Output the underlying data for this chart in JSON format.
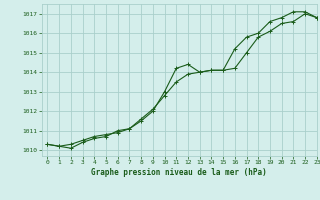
{
  "title": "Graphe pression niveau de la mer (hPa)",
  "background_color": "#d4eeeb",
  "grid_color": "#aacfcb",
  "line_color": "#1a5c1a",
  "xlim": [
    -0.5,
    23
  ],
  "ylim": [
    1009.7,
    1017.5
  ],
  "yticks": [
    1010,
    1011,
    1012,
    1013,
    1014,
    1015,
    1016,
    1017
  ],
  "xticks": [
    0,
    1,
    2,
    3,
    4,
    5,
    6,
    7,
    8,
    9,
    10,
    11,
    12,
    13,
    14,
    15,
    16,
    17,
    18,
    19,
    20,
    21,
    22,
    23
  ],
  "line1_x": [
    0,
    1,
    2,
    3,
    4,
    5,
    6,
    7,
    8,
    9,
    10,
    11,
    12,
    13,
    14,
    15,
    16,
    17,
    18,
    19,
    20,
    21,
    22,
    23
  ],
  "line1_y": [
    1010.3,
    1010.2,
    1010.3,
    1010.5,
    1010.7,
    1010.8,
    1010.9,
    1011.1,
    1011.6,
    1012.1,
    1012.8,
    1013.5,
    1013.9,
    1014.0,
    1014.1,
    1014.1,
    1015.2,
    1015.8,
    1016.0,
    1016.6,
    1016.8,
    1017.1,
    1017.1,
    1016.8
  ],
  "line2_x": [
    0,
    1,
    2,
    3,
    4,
    5,
    6,
    7,
    8,
    9,
    10,
    11,
    12,
    13,
    14,
    15,
    16,
    17,
    18,
    19,
    20,
    21,
    22,
    23
  ],
  "line2_y": [
    1010.3,
    1010.2,
    1010.1,
    1010.4,
    1010.6,
    1010.7,
    1011.0,
    1011.1,
    1011.5,
    1012.0,
    1013.0,
    1014.2,
    1014.4,
    1014.0,
    1014.1,
    1014.1,
    1014.2,
    1015.0,
    1015.8,
    1016.1,
    1016.5,
    1016.6,
    1017.0,
    1016.8
  ]
}
